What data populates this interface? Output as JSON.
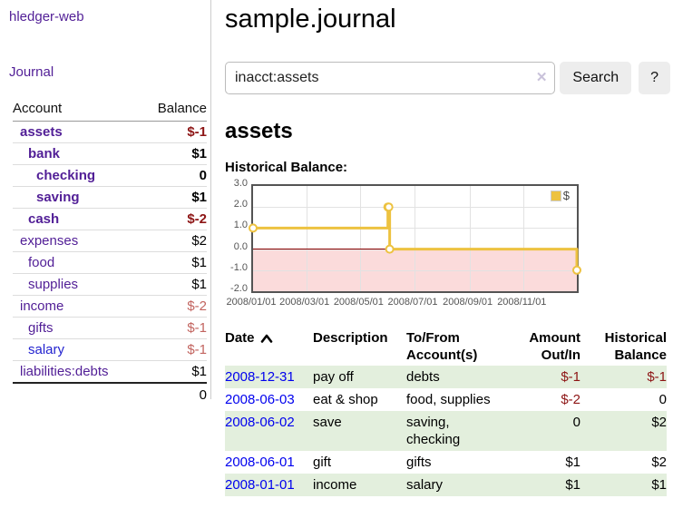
{
  "app": {
    "title": "hledger-web"
  },
  "sidebar": {
    "nav": [
      {
        "label": "Journal"
      }
    ],
    "accounts": {
      "col_account": "Account",
      "col_balance": "Balance",
      "rows": [
        {
          "name": "assets",
          "level": 1,
          "bold": true,
          "link_color": "purple",
          "balance": "$-1",
          "balance_style": "neg-strong"
        },
        {
          "name": "bank",
          "level": 2,
          "bold": true,
          "link_color": "purple",
          "balance": "$1",
          "balance_style": "pos"
        },
        {
          "name": "checking",
          "level": 3,
          "bold": true,
          "link_color": "purple",
          "balance": "0",
          "balance_style": "pos"
        },
        {
          "name": "saving",
          "level": 3,
          "bold": true,
          "link_color": "purple",
          "balance": "$1",
          "balance_style": "pos"
        },
        {
          "name": "cash",
          "level": 2,
          "bold": true,
          "link_color": "purple",
          "balance": "$-2",
          "balance_style": "neg-strong"
        },
        {
          "name": "expenses",
          "level": 1,
          "bold": false,
          "link_color": "purple",
          "balance": "$2",
          "balance_style": "pos"
        },
        {
          "name": "food",
          "level": 2,
          "bold": false,
          "link_color": "purple",
          "balance": "$1",
          "balance_style": "pos"
        },
        {
          "name": "supplies",
          "level": 2,
          "bold": false,
          "link_color": "purple",
          "balance": "$1",
          "balance_style": "pos"
        },
        {
          "name": "income",
          "level": 1,
          "bold": false,
          "link_color": "purple",
          "balance": "$-2",
          "balance_style": "neg-soft"
        },
        {
          "name": "gifts",
          "level": 2,
          "bold": false,
          "link_color": "purple",
          "balance": "$-1",
          "balance_style": "neg-soft"
        },
        {
          "name": "salary",
          "level": 2,
          "bold": false,
          "link_color": "blue",
          "balance": "$-1",
          "balance_style": "neg-soft"
        },
        {
          "name": "liabilities:debts",
          "level": 1,
          "bold": false,
          "link_color": "purple",
          "balance": "$1",
          "balance_style": "pos"
        }
      ],
      "total": "0"
    }
  },
  "main": {
    "title": "sample.journal",
    "search": {
      "value": "inacct:assets",
      "clear_icon": "✕",
      "button": "Search",
      "help": "?"
    },
    "heading": "assets",
    "chart_title": "Historical Balance:"
  },
  "chart_data": {
    "type": "line",
    "step": true,
    "title": "Historical Balance",
    "series": [
      {
        "name": "$",
        "color": "#edc240",
        "points": [
          [
            "2008-01-01",
            1
          ],
          [
            "2008-06-01",
            2
          ],
          [
            "2008-06-02",
            2
          ],
          [
            "2008-06-03",
            0
          ],
          [
            "2008-12-31",
            -1
          ]
        ]
      }
    ],
    "x_range": [
      "2008-01-01",
      "2008-12-31"
    ],
    "ylim": [
      -2,
      3
    ],
    "yticks": [
      "3.0",
      "2.0",
      "1.0",
      "0.0",
      "-1.0",
      "-2.0"
    ],
    "xticks": [
      "2008/01/01",
      "2008/03/01",
      "2008/05/01",
      "2008/07/01",
      "2008/09/01",
      "2008/11/01"
    ],
    "legend": "$",
    "legend_position": "top-right",
    "grid": true,
    "negative_region_color": "#fbdbdb",
    "zero_line_color": "#8b0000"
  },
  "register": {
    "headers": [
      {
        "line1": "Date",
        "line2": "",
        "sort": "ascending"
      },
      {
        "line1": "Description",
        "line2": ""
      },
      {
        "line1": "To/From",
        "line2": "Account(s)"
      },
      {
        "line1": "Amount",
        "line2": "Out/In"
      },
      {
        "line1": "Historical",
        "line2": "Balance"
      }
    ],
    "rows": [
      {
        "date": "2008-12-31",
        "description": "pay off",
        "accounts": "debts",
        "amount": "$-1",
        "amount_neg": true,
        "balance": "$-1",
        "balance_neg": true
      },
      {
        "date": "2008-06-03",
        "description": "eat & shop",
        "accounts": "food, supplies",
        "amount": "$-2",
        "amount_neg": true,
        "balance": "0",
        "balance_neg": false
      },
      {
        "date": "2008-06-02",
        "description": "save",
        "accounts": "saving, checking",
        "amount": "0",
        "amount_neg": false,
        "balance": "$2",
        "balance_neg": false
      },
      {
        "date": "2008-06-01",
        "description": "gift",
        "accounts": "gifts",
        "amount": "$1",
        "amount_neg": false,
        "balance": "$2",
        "balance_neg": false
      },
      {
        "date": "2008-01-01",
        "description": "income",
        "accounts": "salary",
        "amount": "$1",
        "amount_neg": false,
        "balance": "$1",
        "balance_neg": false
      }
    ]
  },
  "colors": {
    "link_purple": "#511e96",
    "link_blue": "#2323cf",
    "negative_strong": "#8d1515",
    "negative_soft": "#c2645f",
    "row_stripe_green": "#e3efdd",
    "series_gold": "#edc240"
  }
}
